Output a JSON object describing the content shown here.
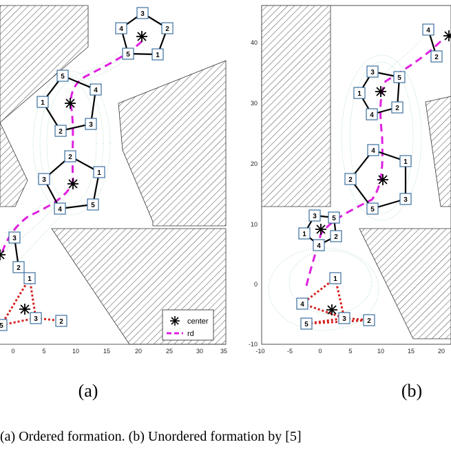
{
  "panels": [
    {
      "id": "a",
      "label": "(a)",
      "xticks": [
        "0",
        "5",
        "10",
        "15",
        "20",
        "25",
        "30",
        "35"
      ],
      "yticks": [],
      "legend": {
        "center_label": "center",
        "rd_label": "rd"
      },
      "formations": [
        {
          "kind": "pentagon",
          "center": true,
          "agents": [
            {
              "n": "3"
            },
            {
              "n": "2"
            },
            {
              "n": "1"
            },
            {
              "n": "5"
            },
            {
              "n": "4"
            }
          ]
        },
        {
          "kind": "pentagon",
          "center": true,
          "agents": [
            {
              "n": "5"
            },
            {
              "n": "4"
            },
            {
              "n": "3"
            },
            {
              "n": "2"
            },
            {
              "n": "1"
            }
          ]
        },
        {
          "kind": "pentagon",
          "center": true,
          "agents": [
            {
              "n": "2"
            },
            {
              "n": "1"
            },
            {
              "n": "5"
            },
            {
              "n": "4"
            },
            {
              "n": "3"
            }
          ]
        },
        {
          "kind": "pentagon",
          "center": true,
          "agents": [
            {
              "n": "3"
            },
            {
              "n": "2"
            }
          ]
        },
        {
          "kind": "start",
          "center": true,
          "agents": [
            {
              "n": "1"
            },
            {
              "n": "3"
            },
            {
              "n": "2"
            },
            {
              "n": "5"
            }
          ]
        }
      ]
    },
    {
      "id": "b",
      "label": "(b)",
      "xticks": [
        "-10",
        "-5",
        "0",
        "5",
        "10",
        "15",
        "20"
      ],
      "yticks": [
        "40",
        "30",
        "20",
        "10",
        "0",
        "-10"
      ],
      "formations": [
        {
          "kind": "pentagon",
          "center": true,
          "agents": [
            {
              "n": "4"
            },
            {
              "n": "2"
            }
          ]
        },
        {
          "kind": "pentagon",
          "center": true,
          "agents": [
            {
              "n": "3"
            },
            {
              "n": "5"
            },
            {
              "n": "1"
            },
            {
              "n": "2"
            },
            {
              "n": "4"
            }
          ]
        },
        {
          "kind": "pentagon",
          "center": true,
          "agents": [
            {
              "n": "4"
            },
            {
              "n": "1"
            },
            {
              "n": "2"
            },
            {
              "n": "3"
            },
            {
              "n": "5"
            }
          ]
        },
        {
          "kind": "pentagon",
          "center": true,
          "agents": [
            {
              "n": "3"
            },
            {
              "n": "5"
            },
            {
              "n": "1"
            },
            {
              "n": "2"
            },
            {
              "n": "4"
            }
          ]
        },
        {
          "kind": "start",
          "center": true,
          "agents": [
            {
              "n": "1"
            },
            {
              "n": "4"
            },
            {
              "n": "3"
            },
            {
              "n": "2"
            },
            {
              "n": "5"
            }
          ]
        }
      ]
    }
  ],
  "caption": "(a) Ordered formation. (b) Unordered formation by [5]",
  "colors": {
    "path": "#e020e0",
    "start_edges": "#d42020",
    "edges": "#000000",
    "box": "#3a6e9e",
    "hatch": "#555555",
    "trail": "#6fbf8f"
  }
}
